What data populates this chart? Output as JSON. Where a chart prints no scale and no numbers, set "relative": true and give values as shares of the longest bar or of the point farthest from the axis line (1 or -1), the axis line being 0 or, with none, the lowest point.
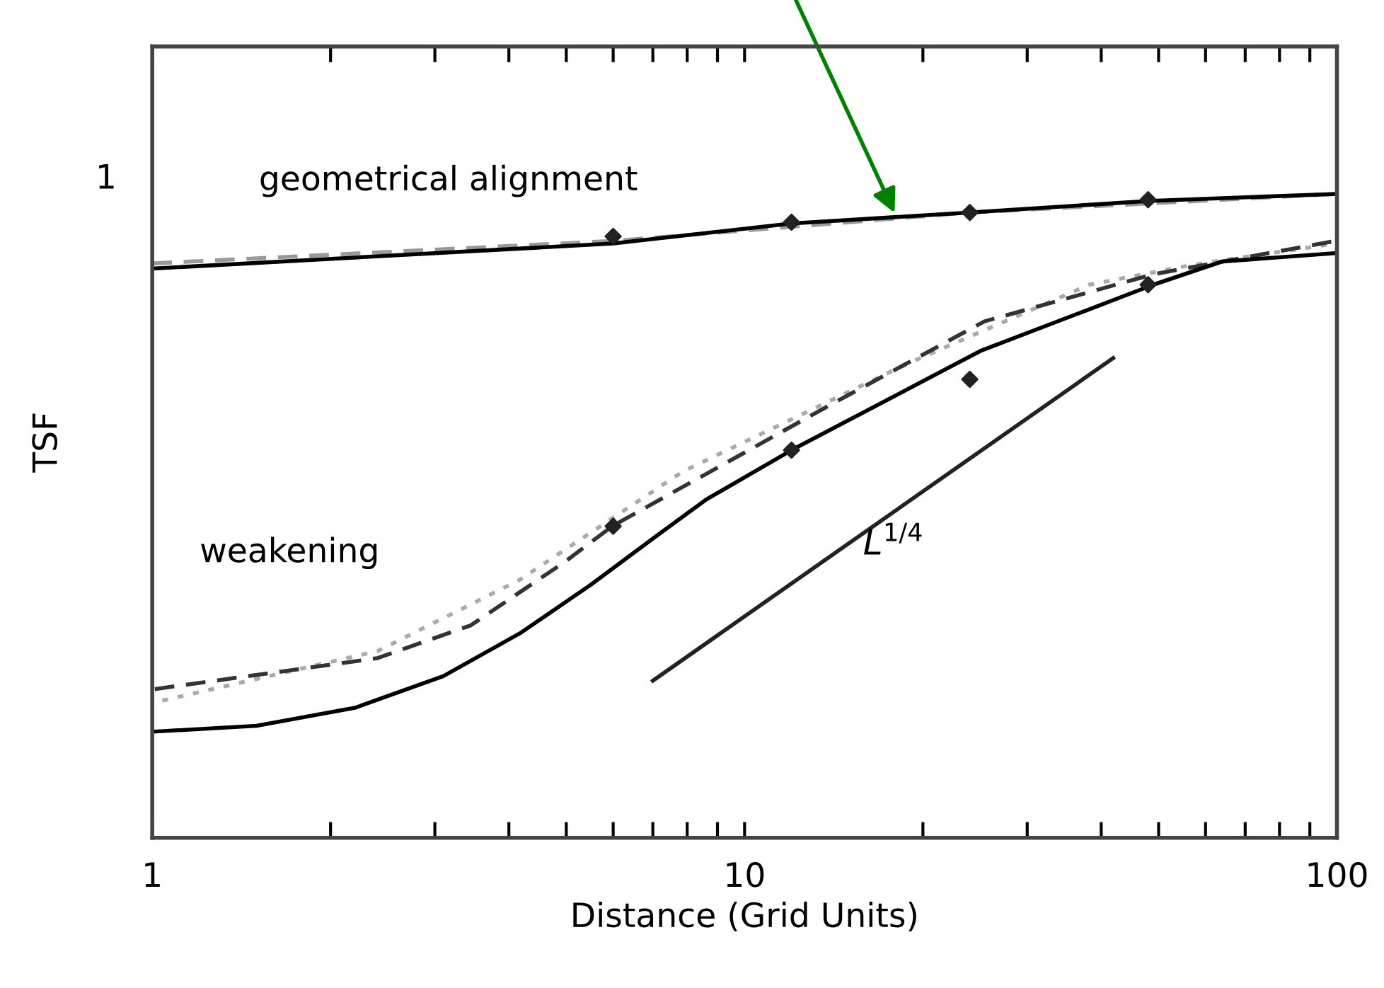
{
  "chart_data": {
    "type": "line",
    "xlabel": "Distance (Grid Units)",
    "ylabel": "TSF",
    "log": "x",
    "relative": true,
    "xlim": [
      1,
      100
    ],
    "xticks": [
      1,
      {
        "value": 2,
        "label": null
      },
      {
        "value": 3,
        "label": null
      },
      {
        "value": 4,
        "label": null
      },
      {
        "value": 5,
        "label": null
      },
      {
        "value": 6,
        "label": null
      },
      {
        "value": 7,
        "label": null
      },
      {
        "value": 8,
        "label": null
      },
      {
        "value": 9,
        "label": null
      },
      10,
      {
        "value": 20,
        "label": null
      },
      {
        "value": 30,
        "label": null
      },
      {
        "value": 40,
        "label": null
      },
      {
        "value": 50,
        "label": null
      },
      {
        "value": 60,
        "label": null
      },
      {
        "value": 70,
        "label": null
      },
      {
        "value": 80,
        "label": null
      },
      {
        "value": 90,
        "label": null
      },
      100
    ],
    "grid": false,
    "legend": false,
    "series": [
      {
        "color": "#999999",
        "line_style": "dashed",
        "x": [
          1,
          6,
          24,
          100
        ],
        "values": [
          0.892,
          0.927,
          0.971,
          1
        ]
      },
      {
        "color": "#000000",
        "line_style": "solid",
        "x": [
          1,
          6,
          12,
          24,
          48,
          100
        ],
        "values": [
          0.884,
          0.923,
          0.954,
          0.971,
          0.989,
          1
        ]
      },
      {
        "color": "#aaaaaa",
        "line_style": "dotted",
        "x": [
          1.04,
          2.4,
          4.16,
          7.87,
          18.8,
          38.2,
          57.2,
          99.4
        ],
        "values": [
          0.213,
          0.29,
          0.4,
          0.569,
          0.736,
          0.859,
          0.89,
          0.923
        ]
      },
      {
        "color": "#333333",
        "line_style": "dashed",
        "x": [
          1.01,
          2.4,
          3.45,
          4.98,
          5.98,
          13.8,
          25.4,
          48.9,
          99.4
        ],
        "values": [
          0.231,
          0.279,
          0.33,
          0.429,
          0.484,
          0.67,
          0.802,
          0.875,
          0.927
        ]
      },
      {
        "color": "#000000",
        "line_style": "solid",
        "x": [
          1.01,
          1.5,
          2.2,
          3.1,
          4.2,
          5.5,
          7.2,
          8.6,
          12,
          25,
          49,
          64,
          99.4
        ],
        "values": [
          0.165,
          0.174,
          0.202,
          0.251,
          0.319,
          0.393,
          0.473,
          0.525,
          0.602,
          0.756,
          0.859,
          0.895,
          0.908
        ]
      },
      {
        "color": "#222222",
        "line_style": "solid",
        "x": [
          7.0,
          41.9
        ],
        "values": [
          0.244,
          0.745
        ]
      },
      {
        "type": "scatter",
        "marker": "diamond",
        "color": "#222222",
        "x": [
          6,
          12,
          24,
          48,
          6,
          12,
          24,
          48
        ],
        "values": [
          0.934,
          0.956,
          0.971,
          0.991,
          0.484,
          0.602,
          0.712,
          0.859
        ]
      }
    ],
    "annotations": [
      "1",
      "geometrical alignment",
      "weakening",
      "L$^{1/4}$"
    ]
  }
}
